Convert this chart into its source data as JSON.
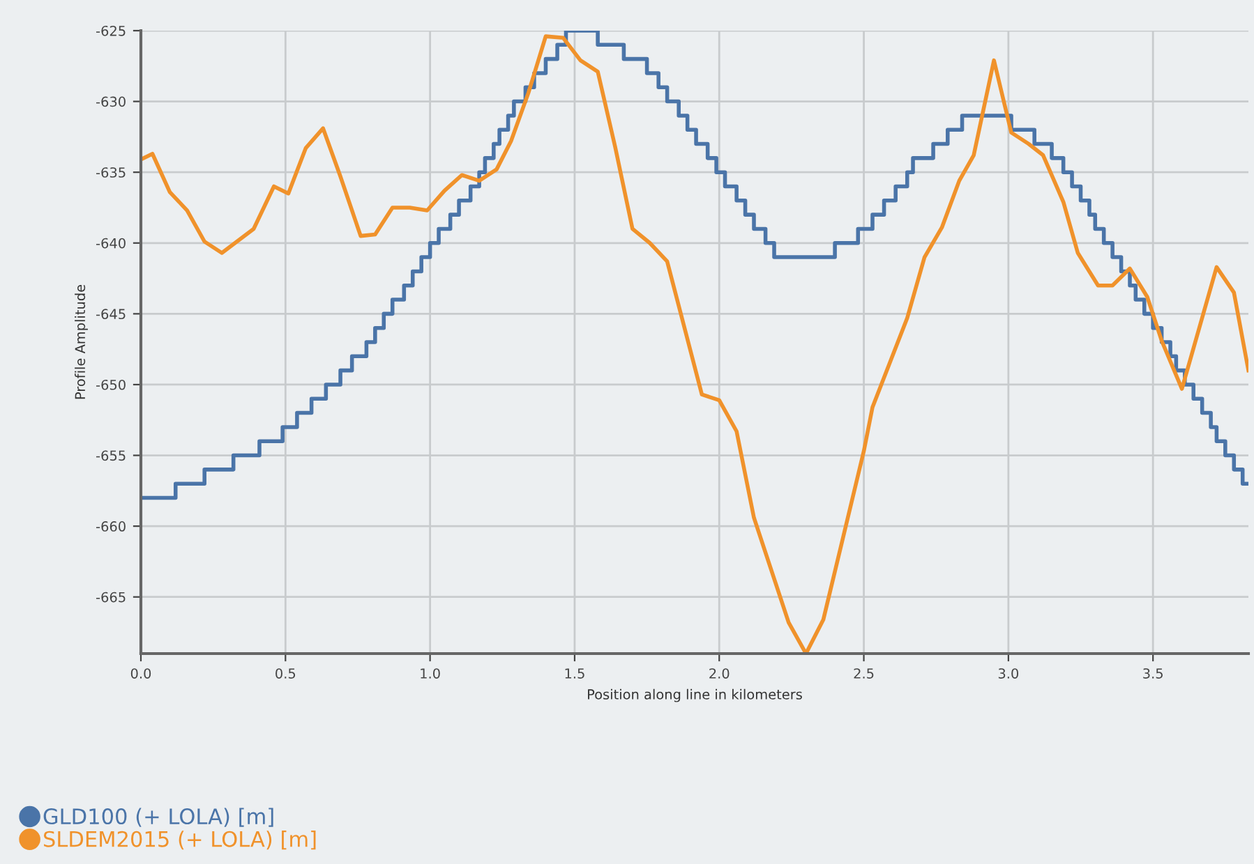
{
  "chart_data": {
    "type": "line",
    "xlabel": "Position along line in kilometers",
    "ylabel": "Profile Amplitude",
    "xlim": [
      0,
      3.83
    ],
    "ylim": [
      -669,
      -625
    ],
    "xticks": [
      {
        "value": 0,
        "label": "0.0"
      },
      {
        "value": 0.5,
        "label": "0.5"
      },
      {
        "value": 1,
        "label": "1.0"
      },
      {
        "value": 1.5,
        "label": "1.5"
      },
      {
        "value": 2,
        "label": "2.0"
      },
      {
        "value": 2.5,
        "label": "2.5"
      },
      {
        "value": 3,
        "label": "3.0"
      },
      {
        "value": 3.5,
        "label": "3.5"
      }
    ],
    "yticks": [
      -625,
      -630,
      -635,
      -640,
      -645,
      -650,
      -655,
      -660,
      -665
    ],
    "grid": true,
    "legend": "bottom left",
    "marker": "none",
    "line_style": "solid",
    "series": [
      {
        "name": "GLD100 (+ LOLA) [m]",
        "color": "#4a74a8",
        "type": "step",
        "x": [
          0,
          0.12,
          0.22,
          0.32,
          0.41,
          0.49,
          0.54,
          0.59,
          0.64,
          0.69,
          0.73,
          0.78,
          0.81,
          0.84,
          0.87,
          0.91,
          0.94,
          0.97,
          1.0,
          1.03,
          1.07,
          1.1,
          1.14,
          1.17,
          1.19,
          1.22,
          1.24,
          1.27,
          1.29,
          1.33,
          1.36,
          1.4,
          1.44,
          1.47,
          1.58,
          1.67,
          1.75,
          1.79,
          1.82,
          1.86,
          1.89,
          1.92,
          1.96,
          1.99,
          2.02,
          2.06,
          2.09,
          2.12,
          2.16,
          2.19,
          2.4,
          2.48,
          2.53,
          2.57,
          2.61,
          2.65,
          2.67,
          2.74,
          2.79,
          2.84,
          3.01,
          3.09,
          3.15,
          3.19,
          3.22,
          3.25,
          3.28,
          3.3,
          3.33,
          3.36,
          3.39,
          3.42,
          3.44,
          3.47,
          3.5,
          3.53,
          3.56,
          3.58,
          3.61,
          3.64,
          3.67,
          3.7,
          3.72,
          3.75,
          3.78,
          3.81,
          3.83
        ],
        "values": [
          -658,
          -657,
          -656,
          -655,
          -654,
          -653,
          -652,
          -651,
          -650,
          -649,
          -648,
          -647,
          -646,
          -645,
          -644,
          -643,
          -642,
          -641,
          -640,
          -639,
          -638,
          -637,
          -636,
          -635,
          -634,
          -633,
          -632,
          -631,
          -630,
          -629,
          -628,
          -627,
          -626,
          -625,
          -626,
          -627,
          -628,
          -629,
          -630,
          -631,
          -632,
          -633,
          -634,
          -635,
          -636,
          -637,
          -638,
          -639,
          -640,
          -641,
          -640,
          -639,
          -638,
          -637,
          -636,
          -635,
          -634,
          -633,
          -632,
          -631,
          -632,
          -633,
          -634,
          -635,
          -636,
          -637,
          -638,
          -639,
          -640,
          -641,
          -642,
          -643,
          -644,
          -645,
          -646,
          -647,
          -648,
          -649,
          -650,
          -651,
          -652,
          -653,
          -654,
          -655,
          -656,
          -657,
          -657
        ]
      },
      {
        "name": "SLDEM2015 (+ LOLA) [m]",
        "color": "#f0922b",
        "x": [
          0,
          0.04,
          0.1,
          0.16,
          0.22,
          0.28,
          0.39,
          0.46,
          0.51,
          0.57,
          0.63,
          0.69,
          0.76,
          0.81,
          0.87,
          0.93,
          0.99,
          1.05,
          1.11,
          1.17,
          1.23,
          1.28,
          1.34,
          1.4,
          1.46,
          1.52,
          1.58,
          1.64,
          1.7,
          1.76,
          1.82,
          1.94,
          2.0,
          2.06,
          2.12,
          2.24,
          2.3,
          2.36,
          2.5,
          2.53,
          2.65,
          2.71,
          2.77,
          2.83,
          2.88,
          2.95,
          3.01,
          3.07,
          3.12,
          3.19,
          3.24,
          3.31,
          3.36,
          3.42,
          3.48,
          3.53,
          3.6,
          3.72,
          3.78,
          3.83
        ],
        "values": [
          -634.1,
          -633.7,
          -636.4,
          -637.7,
          -639.9,
          -640.7,
          -639.0,
          -636.0,
          -636.5,
          -633.3,
          -631.9,
          -635.3,
          -639.5,
          -639.4,
          -637.5,
          -637.5,
          -637.7,
          -636.3,
          -635.2,
          -635.6,
          -634.8,
          -632.8,
          -629.4,
          -625.4,
          -625.5,
          -627.1,
          -627.9,
          -633.2,
          -639.0,
          -640.0,
          -641.3,
          -650.7,
          -651.1,
          -653.3,
          -659.4,
          -666.8,
          -669.0,
          -666.6,
          -654.7,
          -651.6,
          -645.3,
          -641.0,
          -638.9,
          -635.6,
          -633.8,
          -627.1,
          -632.2,
          -633.0,
          -633.8,
          -637.1,
          -640.7,
          -643.0,
          -643.0,
          -641.8,
          -643.8,
          -646.9,
          -650.3,
          -641.7,
          -643.5,
          -649.0
        ]
      }
    ]
  }
}
